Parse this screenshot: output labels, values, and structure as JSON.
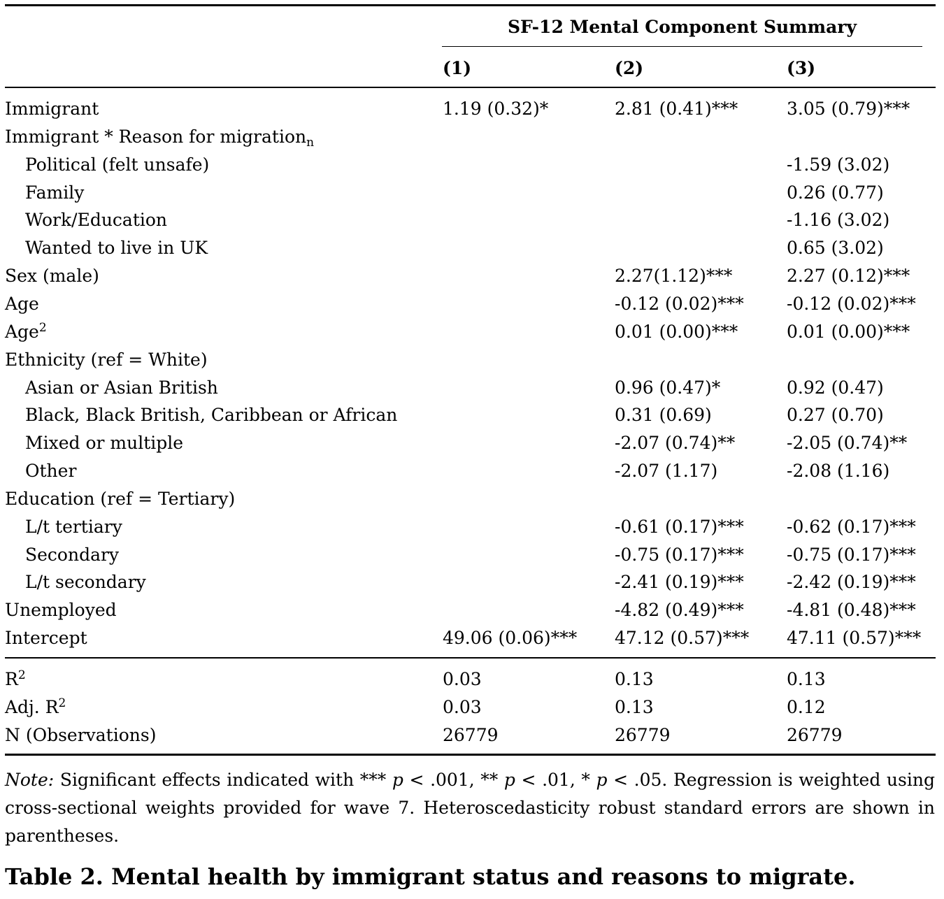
{
  "table": {
    "spanner": "SF-12 Mental Component Summary",
    "columns": [
      "(1)",
      "(2)",
      "(3)"
    ],
    "rows": [
      {
        "label": "Immigrant",
        "c1": "1.19 (0.32)*",
        "c2": "2.81 (0.41)***",
        "c3": "3.05 (0.79)***"
      },
      {
        "label": "Immigrant * Reason for migration",
        "label_sub": "n",
        "c1": "",
        "c2": "",
        "c3": ""
      },
      {
        "label": "Political (felt unsafe)",
        "c1": "",
        "c2": "",
        "c3": "-1.59 (3.02)"
      },
      {
        "label": "Family",
        "c1": "",
        "c2": "",
        "c3": "0.26 (0.77)"
      },
      {
        "label": "Work/Education",
        "c1": "",
        "c2": "",
        "c3": "-1.16 (3.02)"
      },
      {
        "label": "Wanted to live in UK",
        "c1": "",
        "c2": "",
        "c3": "0.65 (3.02)"
      },
      {
        "label": "Sex (male)",
        "c1": "",
        "c2": "2.27(1.12)***",
        "c3": "2.27 (0.12)***"
      },
      {
        "label": "Age",
        "c1": "",
        "c2": "-0.12 (0.02)***",
        "c3": "-0.12 (0.02)***"
      },
      {
        "label": "Age",
        "label_sup": "2",
        "c1": "",
        "c2": "0.01 (0.00)***",
        "c3": "0.01 (0.00)***"
      },
      {
        "label": "Ethnicity (ref = White)",
        "c1": "",
        "c2": "",
        "c3": ""
      },
      {
        "label": "Asian or Asian British",
        "c1": "",
        "c2": "0.96 (0.47)*",
        "c3": "0.92 (0.47)"
      },
      {
        "label": "Black, Black British, Caribbean or African",
        "c1": "",
        "c2": "0.31 (0.69)",
        "c3": "0.27 (0.70)"
      },
      {
        "label": "Mixed or multiple",
        "c1": "",
        "c2": "-2.07 (0.74)**",
        "c3": "-2.05 (0.74)**"
      },
      {
        "label": "Other",
        "c1": "",
        "c2": "-2.07 (1.17)",
        "c3": "-2.08 (1.16)"
      },
      {
        "label": "Education (ref = Tertiary)",
        "c1": "",
        "c2": "",
        "c3": ""
      },
      {
        "label": "L/t tertiary",
        "c1": "",
        "c2": "-0.61 (0.17)***",
        "c3": "-0.62 (0.17)***"
      },
      {
        "label": "Secondary",
        "c1": "",
        "c2": "-0.75 (0.17)***",
        "c3": "-0.75 (0.17)***"
      },
      {
        "label": "L/t secondary",
        "c1": "",
        "c2": "-2.41 (0.19)***",
        "c3": "-2.42 (0.19)***"
      },
      {
        "label": "Unemployed",
        "c1": "",
        "c2": "-4.82 (0.49)***",
        "c3": "-4.81 (0.48)***"
      },
      {
        "label": "Intercept",
        "c1": "49.06 (0.06)***",
        "c2": "47.12 (0.57)***",
        "c3": "47.11 (0.57)***"
      }
    ],
    "stats": [
      {
        "label": "R",
        "label_sup": "2",
        "c1": "0.03",
        "c2": "0.13",
        "c3": "0.13"
      },
      {
        "label": "Adj. R",
        "label_sup": "2",
        "c1": "0.03",
        "c2": "0.13",
        "c3": "0.12"
      },
      {
        "label": "N (Observations)",
        "c1": "26779",
        "c2": "26779",
        "c3": "26779"
      }
    ]
  },
  "note": {
    "lead": "Note:",
    "p1": "Significant effects indicated with *** ",
    "p_sym": "p",
    "t1": " < .001, ** ",
    "t2": " < .01, * ",
    "t3": " < .05. Regression is weighted using cross-sectional weights provided for wave 7. Heteroscedasticity robust standard errors are shown in parentheses."
  },
  "caption": "Table 2. Mental health by immigrant status and reasons to migrate."
}
